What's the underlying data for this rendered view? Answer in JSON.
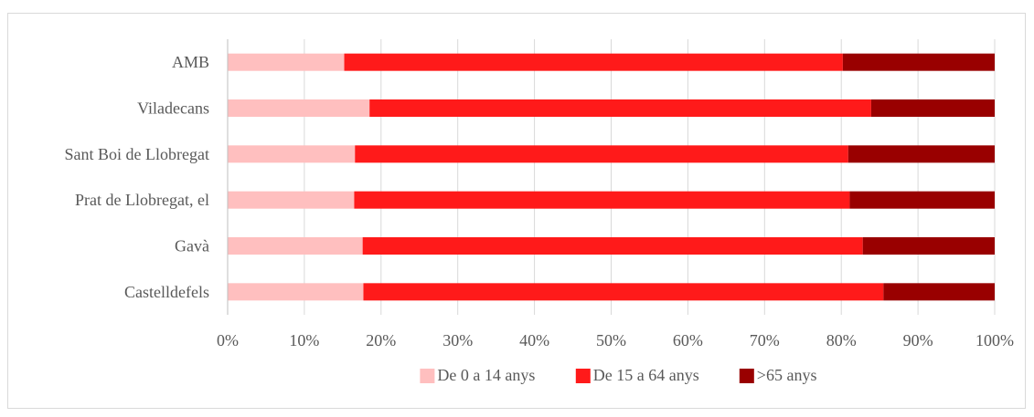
{
  "chart_data": {
    "type": "bar",
    "orientation": "horizontal",
    "stacked": "percent",
    "title": "",
    "xlabel": "",
    "ylabel": "",
    "xlim": [
      0,
      100
    ],
    "grid": true,
    "legend_position": "bottom",
    "x_ticks": [
      "0%",
      "10%",
      "20%",
      "30%",
      "40%",
      "50%",
      "60%",
      "70%",
      "80%",
      "90%",
      "100%"
    ],
    "categories": [
      "AMB",
      "Viladecans",
      "Sant Boi de Llobregat",
      "Prat de Llobregat, el",
      "Gavà",
      "Castelldefels"
    ],
    "series": [
      {
        "name": "De 0 a 14 anys",
        "color": "#ffbfbf",
        "values": [
          15.2,
          18.5,
          16.6,
          16.5,
          17.6,
          17.7
        ]
      },
      {
        "name": "De 15 a 64 anys",
        "color": "#ff1a1a",
        "values": [
          65.0,
          65.4,
          64.3,
          64.6,
          65.2,
          67.8
        ]
      },
      {
        "name": ">65 anys",
        "color": "#990000",
        "values": [
          19.8,
          16.1,
          19.1,
          18.9,
          17.2,
          14.5
        ]
      }
    ]
  }
}
